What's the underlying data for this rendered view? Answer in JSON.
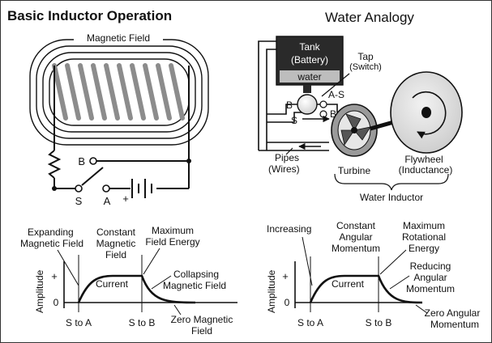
{
  "left_title": "Basic Inductor Operation",
  "right_title": "Water Analogy",
  "inductor": {
    "magnetic_field": "Magnetic Field",
    "switch_b": "B",
    "switch_s": "S",
    "switch_a": "A",
    "plus": "+"
  },
  "water": {
    "tank_line1": "Tank",
    "tank_line2": "(Battery)",
    "water_label": "water",
    "tap_line1": "Tap",
    "tap_line2": "(Switch)",
    "a_s": "A-S",
    "b_s": "B-S",
    "b": "B",
    "s": "S",
    "pipes_line1": "Pipes",
    "pipes_line2": "(Wires)",
    "turbine": "Turbine",
    "flywheel_line1": "Flywheel",
    "flywheel_line2": "(Inductance)",
    "water_inductor": "Water Inductor"
  },
  "left_graph": {
    "expanding_1": "Expanding",
    "expanding_2": "Magnetic Field",
    "constant_1": "Constant",
    "constant_2": "Magnetic",
    "constant_3": "Field",
    "maximum_1": "Maximum",
    "maximum_2": "Field Energy",
    "collapsing_1": "Collapsing",
    "collapsing_2": "Magnetic Field",
    "zero_1": "Zero Magnetic",
    "zero_2": "Field",
    "current": "Current",
    "ylabel": "Amplitude",
    "plus": "+",
    "zero": "0",
    "x1": "S to A",
    "x2": "S to B"
  },
  "right_graph": {
    "increasing": "Increasing",
    "constant_1": "Constant",
    "constant_2": "Angular",
    "constant_3": "Momentum",
    "maximum_1": "Maximum",
    "maximum_2": "Rotational",
    "maximum_3": "Energy",
    "reducing_1": "Reducing",
    "reducing_2": "Angular",
    "reducing_3": "Momentum",
    "zero_1": "Zero Angular",
    "zero_2": "Momentum",
    "current": "Current",
    "ylabel": "Amplitude",
    "plus": "+",
    "zero": "0",
    "x1": "S to A",
    "x2": "S to B"
  },
  "colors": {
    "ink": "#111111",
    "coil": "#8c8c8c",
    "tank": "#2a2a2a",
    "water": "#bdbdbd"
  }
}
